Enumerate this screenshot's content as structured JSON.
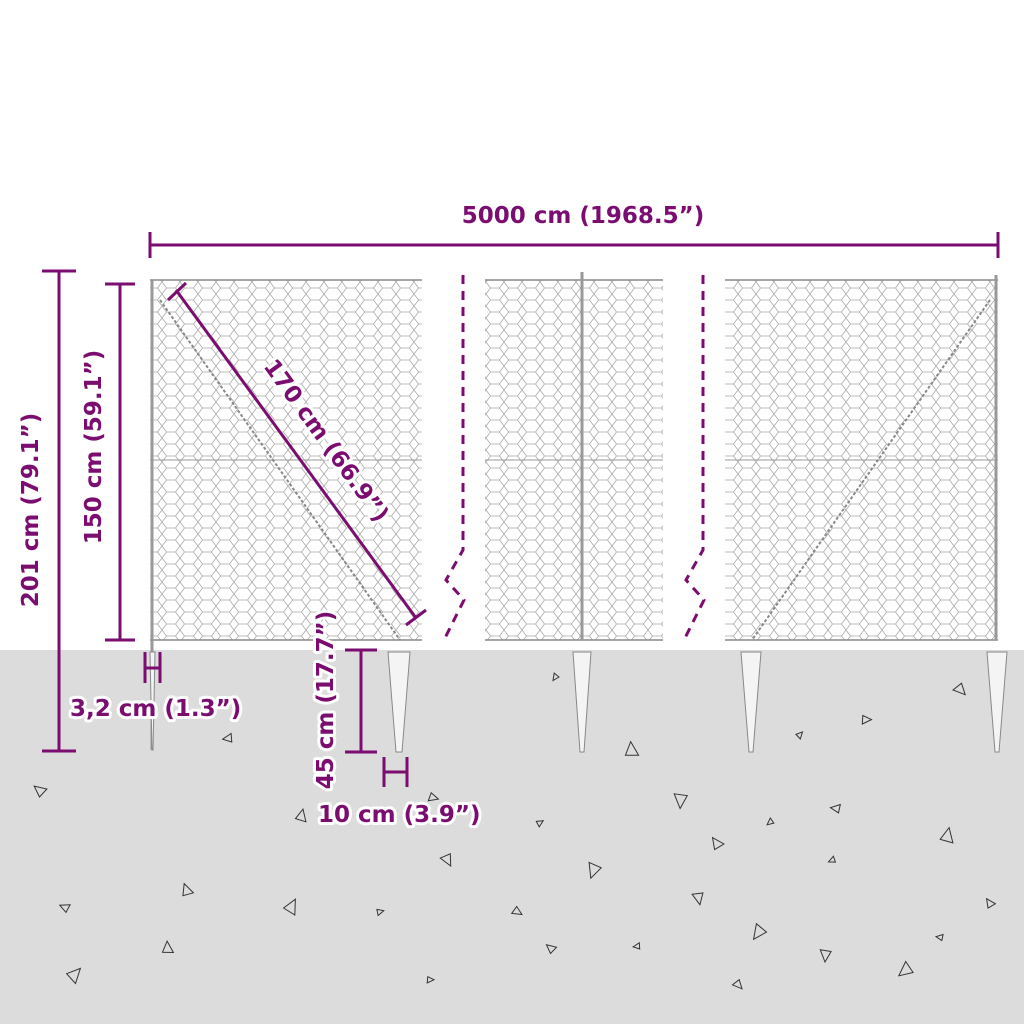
{
  "dimensions": {
    "total_length": "5000 cm (1968.5”)",
    "total_height": "201 cm (79.1”)",
    "fence_height": "150 cm (59.1”)",
    "brace_length": "170 cm (66.9”)",
    "post_diameter": "3,2 cm (1.3”)",
    "spike_depth": "45 cm (17.7”)",
    "spike_width": "10 cm (3.9”)"
  },
  "colors": {
    "accent": "#7b0c70",
    "ground": "#dcdcdc",
    "mesh": "#a0a0a0"
  }
}
